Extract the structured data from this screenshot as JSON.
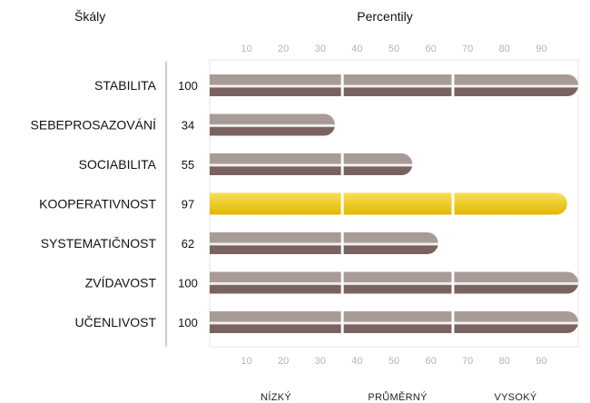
{
  "chart_data": {
    "type": "bar",
    "orientation": "horizontal",
    "header_left": "Škály",
    "header_right": "Percentily",
    "categories": [
      "STABILITA",
      "SEBEPROSAZOVÁNÍ",
      "SOCIABILITA",
      "KOOPERATIVNOST",
      "SYSTEMATIČNOST",
      "ZVÍDAVOST",
      "UČENLIVOST"
    ],
    "values": [
      100,
      34,
      55,
      97,
      62,
      100,
      100
    ],
    "value_labels": [
      "100",
      "34",
      "55",
      "97",
      "62",
      "100",
      "100"
    ],
    "highlighted_category": "KOOPERATIVNOST",
    "xlim": [
      0,
      100
    ],
    "ticks": [
      "10",
      "20",
      "30",
      "40",
      "50",
      "60",
      "70",
      "80",
      "90"
    ],
    "tick_values": [
      10,
      20,
      30,
      40,
      50,
      60,
      70,
      80,
      90
    ],
    "zones": [
      {
        "label": "NÍZKÝ",
        "from": 0,
        "to": 36
      },
      {
        "label": "PRŮMĚRNÝ",
        "from": 36,
        "to": 66
      },
      {
        "label": "VYSOKÝ",
        "from": 66,
        "to": 100
      }
    ],
    "zone_boundaries": [
      36,
      66
    ],
    "colors": {
      "bar_top": "#a89b97",
      "bar_bottom": "#7a6260",
      "bar_highlight_top": "#f6df57",
      "bar_highlight_bottom": "#e4b800",
      "tick": "#b4b4b4",
      "frame": "#e4e4e4"
    }
  }
}
